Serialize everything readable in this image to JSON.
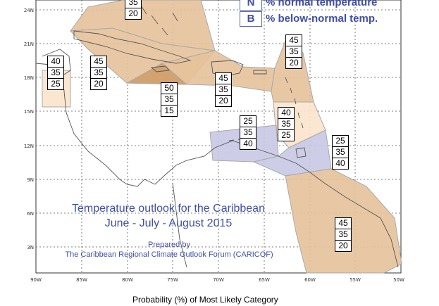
{
  "legend": [
    {
      "key": "N",
      "text": "% normal temperature"
    },
    {
      "key": "B",
      "text": "% below-normal temp."
    }
  ],
  "colors": {
    "above_light": "#fbe3cc",
    "above_medium": "#e5c29a",
    "above_dark": "#cf9f6c",
    "below": "#c9c8e4",
    "outline": "#a9a9a9",
    "land_outline": "#555555",
    "grid": "#555555",
    "text_blue": "#3f4fa6"
  },
  "map_title": {
    "line1": "Temperature outlook for the Caribbean",
    "line2": "June - July - August 2015"
  },
  "credit": {
    "line1": "Prepared by",
    "line2": "The Caribbean Regional Climate Outlook Forum (CARICOF)"
  },
  "caption": "Probability (%) of Most Likely Category",
  "axes": {
    "lat_labels": [
      "24N",
      "21N",
      "18N",
      "15N",
      "12N",
      "9N",
      "6N",
      "3N"
    ],
    "lon_labels": [
      "90W",
      "85W",
      "80W",
      "75W",
      "70W",
      "65W",
      "60W",
      "55W",
      "50W"
    ]
  },
  "probability_boxes": [
    {
      "id": "bahamas",
      "values": [
        "35",
        "20"
      ]
    },
    {
      "id": "belize",
      "values": [
        "40",
        "35",
        "25"
      ]
    },
    {
      "id": "cuba-cayman",
      "values": [
        "45",
        "35",
        "20"
      ]
    },
    {
      "id": "jamaica",
      "values": [
        "50",
        "35",
        "15"
      ]
    },
    {
      "id": "hispaniola-pr",
      "values": [
        "45",
        "35",
        "20"
      ]
    },
    {
      "id": "north-leewards",
      "values": [
        "45",
        "35",
        "20"
      ]
    },
    {
      "id": "south-lesser-antilles",
      "values": [
        "40",
        "35",
        "25"
      ]
    },
    {
      "id": "abc-islands",
      "values": [
        "25",
        "35",
        "40"
      ]
    },
    {
      "id": "trinidad-tobago",
      "values": [
        "25",
        "35",
        "40"
      ]
    },
    {
      "id": "guianas",
      "values": [
        "45",
        "35",
        "20"
      ]
    }
  ]
}
